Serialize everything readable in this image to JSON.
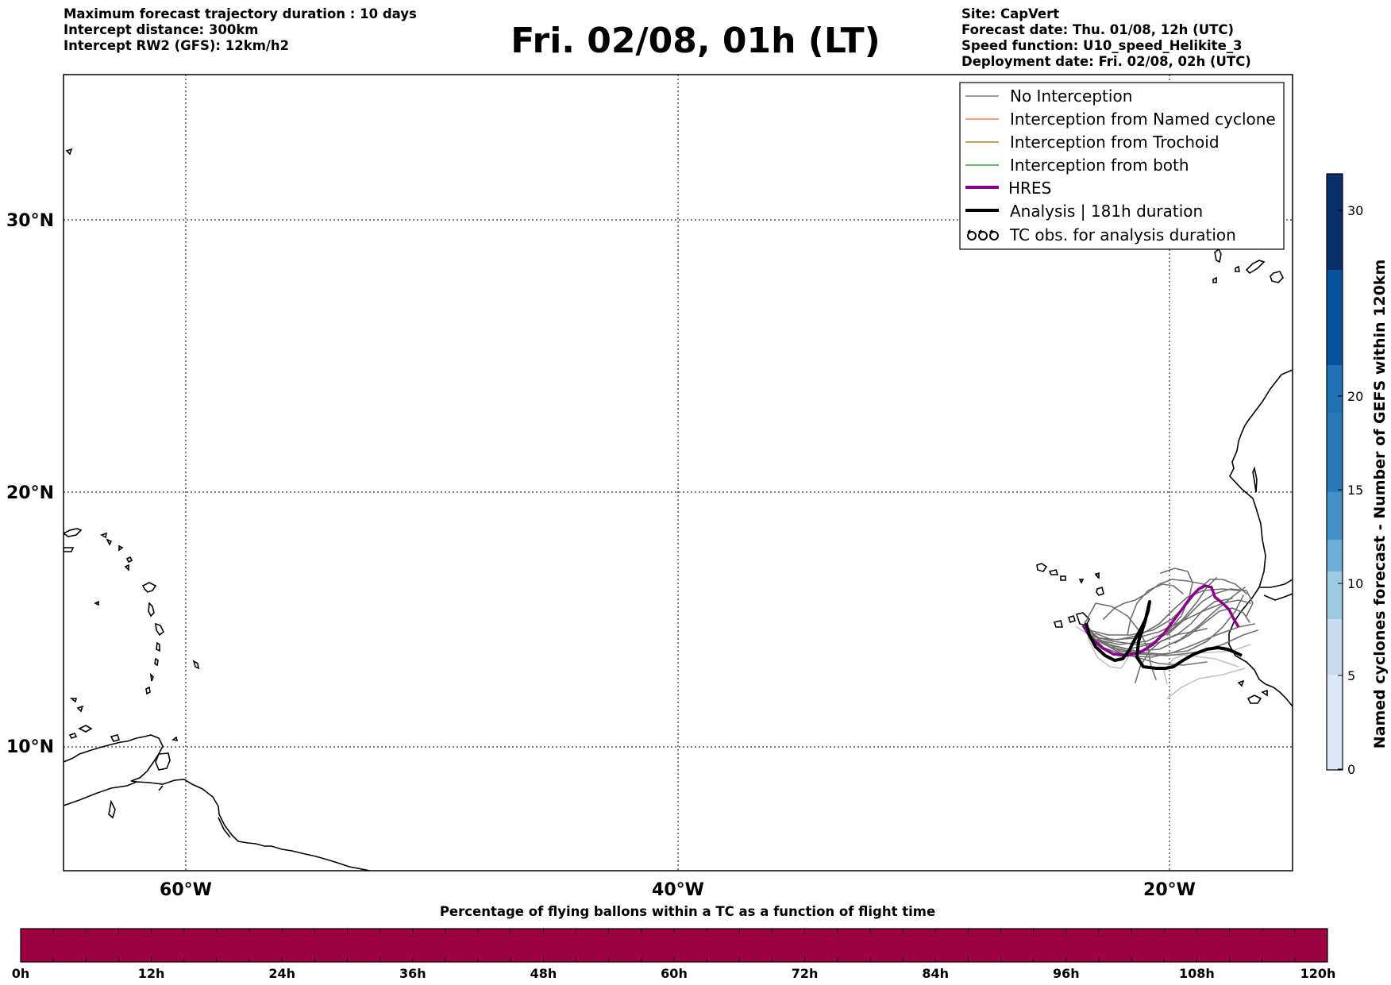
{
  "header": {
    "left_lines": [
      "Maximum forecast trajectory duration : 10 days",
      "Intercept distance: 300km",
      "Intercept RW2 (GFS):  12km/h2"
    ],
    "title": "Fri. 02/08, 01h (LT)",
    "right_lines": [
      "Site: CapVert",
      "Forecast date: Thu. 01/08, 12h (UTC)",
      "Speed function: U10_speed_Helikite_3",
      "Deployment date: Fri. 02/08, 02h (UTC)"
    ]
  },
  "map": {
    "lat_labels": [
      "30°N",
      "20°N",
      "10°N"
    ],
    "lon_labels": [
      "60°W",
      "40°W",
      "20°W"
    ],
    "extent": {
      "lon_min": -65,
      "lon_max": -15,
      "lat_min": 5.4,
      "lat_max": 35
    }
  },
  "legend": {
    "items": [
      {
        "label": "No Interception",
        "color": "#808080",
        "style": "thin"
      },
      {
        "label": "Interception from Named cyclone",
        "color": "#ff7f50",
        "style": "thin"
      },
      {
        "label": "Interception from Trochoid",
        "color": "#a0882a",
        "style": "thin"
      },
      {
        "label": "Interception from both",
        "color": "#3c9a3c",
        "style": "thin"
      },
      {
        "label": "HRES",
        "color": "#8b008b",
        "style": "thick"
      },
      {
        "label": "Analysis | 181h duration",
        "color": "#000000",
        "style": "thick"
      },
      {
        "label": "TC obs. for analysis duration",
        "color": "#000000",
        "style": "symbol"
      }
    ]
  },
  "colorbar_right": {
    "label": "Named cyclones forecast - Number of GEFS within 120km",
    "ticks": [
      "0",
      "5",
      "10",
      "15",
      "20",
      "30"
    ],
    "colors": [
      "#dbe9f6",
      "#c6dbef",
      "#9ecae1",
      "#6baed6",
      "#4292c6",
      "#2171b5",
      "#08519c",
      "#08306b"
    ]
  },
  "colorbar_bottom": {
    "title": "Percentage of flying ballons within a TC as a function of flight time",
    "ticks": [
      "0h",
      "12h",
      "24h",
      "36h",
      "48h",
      "60h",
      "72h",
      "84h",
      "96h",
      "108h",
      "120h"
    ],
    "fill_color": "#9e0142"
  }
}
